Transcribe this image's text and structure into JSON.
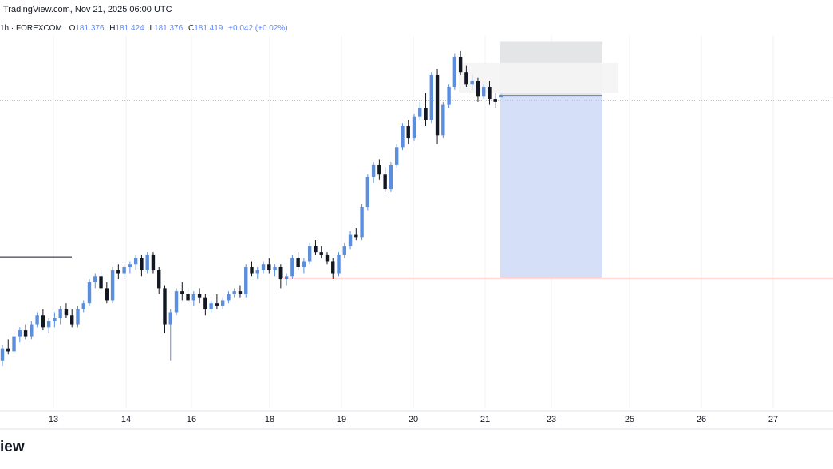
{
  "header": {
    "source": "TradingView.com, Nov 21, 2025 06:00 UTC"
  },
  "legend": {
    "symbol": "1h · FOREXCOM",
    "o_label": "O",
    "o_value": "181.376",
    "h_label": "H",
    "h_value": "181.424",
    "l_label": "L",
    "l_value": "181.376",
    "c_label": "C",
    "c_value": "181.419",
    "change": "+0.042 (+0.02%)"
  },
  "branding": {
    "logo_text": "iew"
  },
  "colors": {
    "up": "#5b8fde",
    "down": "#131722",
    "position_target": "#d5dff7",
    "position_stop": "#e4e5e7",
    "level_line": "#ef5350",
    "entry_line": "#2962ff",
    "grid": "#eef0f3"
  },
  "chart_data": {
    "type": "candlestick",
    "interval": "1h",
    "x_ticks": [
      "13",
      "14",
      "16",
      "18",
      "19",
      "20",
      "21",
      "23",
      "25",
      "26",
      "27"
    ],
    "ylim": [
      176.2,
      182.4
    ],
    "candles": [
      [
        177.0,
        177.25,
        176.9,
        177.2
      ],
      [
        177.2,
        177.35,
        177.1,
        177.15
      ],
      [
        177.15,
        177.45,
        177.1,
        177.4
      ],
      [
        177.4,
        177.55,
        177.3,
        177.5
      ],
      [
        177.5,
        177.6,
        177.35,
        177.4
      ],
      [
        177.4,
        177.65,
        177.35,
        177.6
      ],
      [
        177.6,
        177.8,
        177.55,
        177.75
      ],
      [
        177.75,
        177.85,
        177.5,
        177.55
      ],
      [
        177.55,
        177.7,
        177.45,
        177.65
      ],
      [
        177.65,
        177.8,
        177.55,
        177.7
      ],
      [
        177.7,
        177.9,
        177.6,
        177.85
      ],
      [
        177.85,
        177.95,
        177.7,
        177.75
      ],
      [
        177.75,
        177.85,
        177.55,
        177.6
      ],
      [
        177.6,
        177.9,
        177.55,
        177.85
      ],
      [
        177.85,
        178.0,
        177.8,
        177.95
      ],
      [
        177.95,
        178.35,
        177.9,
        178.3
      ],
      [
        178.3,
        178.45,
        178.2,
        178.4
      ],
      [
        178.4,
        178.5,
        178.15,
        178.2
      ],
      [
        178.2,
        178.3,
        177.95,
        178.0
      ],
      [
        178.0,
        178.55,
        177.95,
        178.5
      ],
      [
        178.5,
        178.6,
        178.35,
        178.45
      ],
      [
        178.45,
        178.6,
        178.35,
        178.55
      ],
      [
        178.55,
        178.65,
        178.45,
        178.6
      ],
      [
        178.6,
        178.75,
        178.5,
        178.7
      ],
      [
        178.7,
        178.75,
        178.4,
        178.5
      ],
      [
        178.5,
        178.8,
        178.45,
        178.75
      ],
      [
        178.75,
        178.8,
        178.45,
        178.5
      ],
      [
        178.5,
        178.55,
        178.1,
        178.2
      ],
      [
        178.2,
        178.25,
        177.45,
        177.6
      ],
      [
        177.6,
        177.85,
        177.0,
        177.8
      ],
      [
        177.8,
        178.2,
        177.75,
        178.15
      ],
      [
        178.15,
        178.3,
        178.0,
        178.1
      ],
      [
        178.1,
        178.2,
        177.95,
        178.0
      ],
      [
        178.0,
        178.15,
        177.9,
        178.1
      ],
      [
        178.1,
        178.2,
        177.95,
        178.05
      ],
      [
        178.05,
        178.1,
        177.75,
        177.85
      ],
      [
        177.85,
        178.0,
        177.8,
        177.95
      ],
      [
        177.95,
        178.1,
        177.85,
        177.9
      ],
      [
        177.9,
        178.05,
        177.85,
        178.0
      ],
      [
        178.0,
        178.15,
        177.95,
        178.1
      ],
      [
        178.1,
        178.2,
        178.05,
        178.15
      ],
      [
        178.15,
        178.25,
        178.05,
        178.1
      ],
      [
        178.1,
        178.6,
        178.05,
        178.55
      ],
      [
        178.55,
        178.65,
        178.4,
        178.45
      ],
      [
        178.45,
        178.55,
        178.35,
        178.5
      ],
      [
        178.5,
        178.65,
        178.45,
        178.6
      ],
      [
        178.6,
        178.7,
        178.45,
        178.5
      ],
      [
        178.5,
        178.6,
        178.4,
        178.55
      ],
      [
        178.55,
        178.6,
        178.2,
        178.35
      ],
      [
        178.35,
        178.45,
        178.25,
        178.4
      ],
      [
        178.4,
        178.75,
        178.35,
        178.7
      ],
      [
        178.7,
        178.8,
        178.5,
        178.55
      ],
      [
        178.55,
        178.7,
        178.45,
        178.65
      ],
      [
        178.65,
        178.95,
        178.6,
        178.9
      ],
      [
        178.9,
        179.0,
        178.75,
        178.8
      ],
      [
        178.8,
        178.9,
        178.7,
        178.75
      ],
      [
        178.75,
        178.8,
        178.6,
        178.65
      ],
      [
        178.65,
        178.7,
        178.35,
        178.45
      ],
      [
        178.45,
        178.8,
        178.4,
        178.75
      ],
      [
        178.75,
        178.95,
        178.7,
        178.9
      ],
      [
        178.9,
        179.15,
        178.85,
        179.1
      ],
      [
        179.1,
        179.2,
        179.0,
        179.05
      ],
      [
        179.05,
        179.6,
        179.0,
        179.55
      ],
      [
        179.55,
        180.1,
        179.5,
        180.05
      ],
      [
        180.05,
        180.3,
        179.95,
        180.25
      ],
      [
        180.25,
        180.35,
        180.0,
        180.1
      ],
      [
        180.1,
        180.2,
        179.8,
        179.85
      ],
      [
        179.85,
        180.3,
        179.8,
        180.25
      ],
      [
        180.25,
        180.6,
        180.2,
        180.55
      ],
      [
        180.55,
        180.95,
        180.5,
        180.9
      ],
      [
        180.9,
        181.0,
        180.6,
        180.7
      ],
      [
        180.7,
        181.1,
        180.65,
        181.05
      ],
      [
        181.05,
        181.3,
        181.0,
        181.2
      ],
      [
        181.2,
        181.45,
        180.9,
        181.0
      ],
      [
        181.0,
        181.8,
        180.95,
        181.75
      ],
      [
        181.75,
        181.85,
        180.6,
        180.75
      ],
      [
        180.75,
        181.3,
        180.7,
        181.25
      ],
      [
        181.25,
        181.6,
        181.2,
        181.55
      ],
      [
        181.55,
        182.1,
        181.5,
        182.05
      ],
      [
        182.05,
        182.15,
        181.75,
        181.8
      ],
      [
        181.8,
        181.9,
        181.55,
        181.6
      ],
      [
        181.6,
        181.75,
        181.5,
        181.65
      ],
      [
        181.65,
        181.7,
        181.3,
        181.4
      ],
      [
        181.4,
        181.6,
        181.35,
        181.55
      ],
      [
        181.55,
        181.65,
        181.25,
        181.35
      ],
      [
        181.35,
        181.45,
        181.2,
        181.3
      ],
      [
        181.376,
        181.424,
        181.376,
        181.419
      ]
    ],
    "levels": [
      {
        "name": "support",
        "value": 178.37
      },
      {
        "name": "entry",
        "value": 181.41
      }
    ],
    "position": {
      "entry": 181.41,
      "target": 178.37,
      "stop": 182.3
    },
    "grid": true
  }
}
